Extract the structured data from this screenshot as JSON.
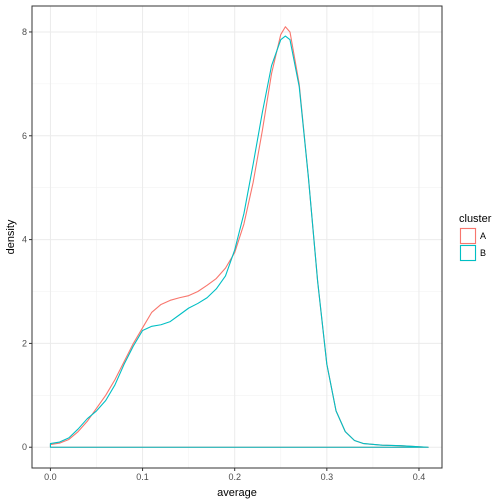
{
  "chart_data": {
    "type": "line",
    "xlabel": "average",
    "ylabel": "density",
    "xlim": [
      -0.02,
      0.425
    ],
    "ylim": [
      -0.4,
      8.5
    ],
    "x_ticks": [
      0.0,
      0.1,
      0.2,
      0.3,
      0.4
    ],
    "x_tick_labels": [
      "0.0",
      "0.1",
      "0.2",
      "0.3",
      "0.4"
    ],
    "y_ticks": [
      0,
      2,
      4,
      6,
      8
    ],
    "y_tick_labels": [
      "0",
      "2",
      "4",
      "6",
      "8"
    ],
    "grid": true,
    "theme": "white background with light grey grid and dark panel border",
    "legend": {
      "title": "cluster",
      "position": "right",
      "entries": [
        "A",
        "B"
      ]
    },
    "series": [
      {
        "name": "A",
        "color": "#F8766D",
        "points": [
          [
            0.0,
            0.05
          ],
          [
            0.01,
            0.08
          ],
          [
            0.02,
            0.15
          ],
          [
            0.03,
            0.3
          ],
          [
            0.04,
            0.5
          ],
          [
            0.05,
            0.75
          ],
          [
            0.06,
            1.0
          ],
          [
            0.07,
            1.3
          ],
          [
            0.08,
            1.65
          ],
          [
            0.09,
            2.0
          ],
          [
            0.1,
            2.3
          ],
          [
            0.11,
            2.6
          ],
          [
            0.12,
            2.75
          ],
          [
            0.13,
            2.83
          ],
          [
            0.14,
            2.88
          ],
          [
            0.15,
            2.92
          ],
          [
            0.16,
            3.0
          ],
          [
            0.17,
            3.12
          ],
          [
            0.18,
            3.25
          ],
          [
            0.19,
            3.45
          ],
          [
            0.2,
            3.75
          ],
          [
            0.21,
            4.3
          ],
          [
            0.22,
            5.1
          ],
          [
            0.23,
            6.1
          ],
          [
            0.24,
            7.2
          ],
          [
            0.25,
            7.95
          ],
          [
            0.255,
            8.1
          ],
          [
            0.26,
            8.0
          ],
          [
            0.27,
            7.0
          ],
          [
            0.28,
            5.2
          ],
          [
            0.29,
            3.2
          ],
          [
            0.3,
            1.6
          ],
          [
            0.31,
            0.7
          ],
          [
            0.32,
            0.3
          ],
          [
            0.33,
            0.13
          ],
          [
            0.34,
            0.07
          ],
          [
            0.36,
            0.04
          ],
          [
            0.38,
            0.03
          ],
          [
            0.41,
            0.0
          ]
        ]
      },
      {
        "name": "B",
        "color": "#00BFC4",
        "points": [
          [
            0.0,
            0.07
          ],
          [
            0.01,
            0.1
          ],
          [
            0.02,
            0.18
          ],
          [
            0.03,
            0.35
          ],
          [
            0.04,
            0.55
          ],
          [
            0.05,
            0.7
          ],
          [
            0.06,
            0.9
          ],
          [
            0.07,
            1.2
          ],
          [
            0.08,
            1.6
          ],
          [
            0.09,
            1.95
          ],
          [
            0.1,
            2.25
          ],
          [
            0.11,
            2.33
          ],
          [
            0.12,
            2.36
          ],
          [
            0.13,
            2.42
          ],
          [
            0.14,
            2.55
          ],
          [
            0.15,
            2.68
          ],
          [
            0.16,
            2.77
          ],
          [
            0.17,
            2.88
          ],
          [
            0.18,
            3.05
          ],
          [
            0.19,
            3.3
          ],
          [
            0.2,
            3.8
          ],
          [
            0.21,
            4.5
          ],
          [
            0.22,
            5.45
          ],
          [
            0.23,
            6.45
          ],
          [
            0.24,
            7.35
          ],
          [
            0.25,
            7.85
          ],
          [
            0.255,
            7.92
          ],
          [
            0.26,
            7.85
          ],
          [
            0.27,
            6.95
          ],
          [
            0.28,
            5.2
          ],
          [
            0.29,
            3.2
          ],
          [
            0.3,
            1.6
          ],
          [
            0.31,
            0.7
          ],
          [
            0.32,
            0.3
          ],
          [
            0.33,
            0.13
          ],
          [
            0.34,
            0.07
          ],
          [
            0.36,
            0.04
          ],
          [
            0.38,
            0.03
          ],
          [
            0.41,
            0.0
          ]
        ]
      }
    ]
  }
}
